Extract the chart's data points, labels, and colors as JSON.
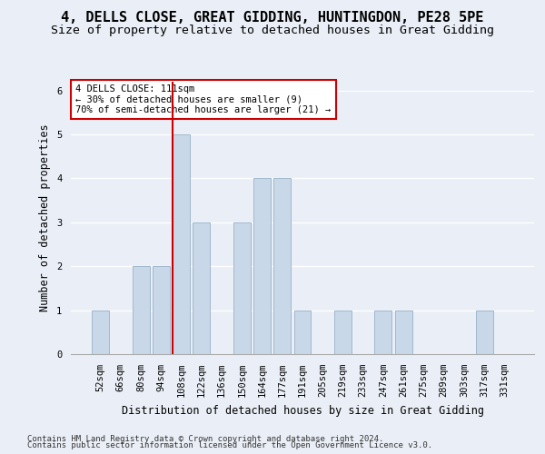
{
  "title1": "4, DELLS CLOSE, GREAT GIDDING, HUNTINGDON, PE28 5PE",
  "title2": "Size of property relative to detached houses in Great Gidding",
  "xlabel": "Distribution of detached houses by size in Great Gidding",
  "ylabel": "Number of detached properties",
  "footnote1": "Contains HM Land Registry data © Crown copyright and database right 2024.",
  "footnote2": "Contains public sector information licensed under the Open Government Licence v3.0.",
  "categories": [
    "52sqm",
    "66sqm",
    "80sqm",
    "94sqm",
    "108sqm",
    "122sqm",
    "136sqm",
    "150sqm",
    "164sqm",
    "177sqm",
    "191sqm",
    "205sqm",
    "219sqm",
    "233sqm",
    "247sqm",
    "261sqm",
    "275sqm",
    "289sqm",
    "303sqm",
    "317sqm",
    "331sqm"
  ],
  "values": [
    1,
    0,
    2,
    2,
    5,
    3,
    0,
    3,
    4,
    4,
    1,
    0,
    1,
    0,
    1,
    1,
    0,
    0,
    0,
    1,
    0
  ],
  "bar_color": "#c8d8e8",
  "bar_edge_color": "#a0b8cc",
  "highlight_index": 4,
  "highlight_line_color": "#cc0000",
  "annotation_text": "4 DELLS CLOSE: 111sqm\n← 30% of detached houses are smaller (9)\n70% of semi-detached houses are larger (21) →",
  "annotation_box_color": "#ffffff",
  "annotation_box_edge_color": "#cc0000",
  "ylim": [
    0,
    6.2
  ],
  "yticks": [
    0,
    1,
    2,
    3,
    4,
    5,
    6
  ],
  "background_color": "#eaeff7",
  "plot_bg_color": "#eaeff7",
  "title1_fontsize": 11,
  "title2_fontsize": 9.5,
  "axis_label_fontsize": 8.5,
  "tick_fontsize": 7.5,
  "footnote_fontsize": 6.5
}
